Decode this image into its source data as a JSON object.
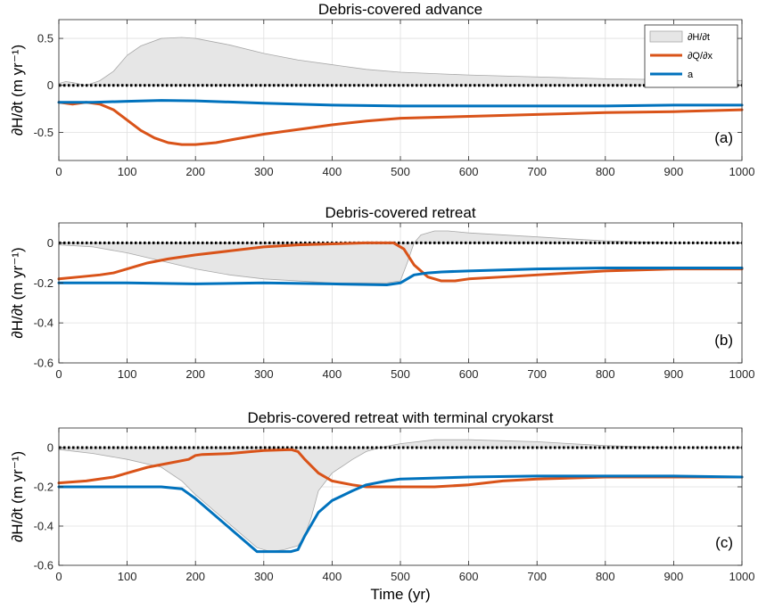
{
  "chart_data": [
    {
      "type": "line",
      "title": "Debris-covered advance",
      "panel_label": "(a)",
      "ylabel": "∂H/∂t (m yr⁻¹)",
      "xlabel": "",
      "xlim": [
        0,
        1000
      ],
      "ylim": [
        -0.8,
        0.7
      ],
      "xticks": [
        "0",
        "100",
        "200",
        "300",
        "400",
        "500",
        "600",
        "700",
        "800",
        "900",
        "1000"
      ],
      "yticks": [
        {
          "v": 0.5,
          "label": "0.5"
        },
        {
          "v": 0,
          "label": "0"
        },
        {
          "v": -0.5,
          "label": "-0.5"
        }
      ],
      "grid": true,
      "legend_position": "top-right",
      "legend": [
        "∂H/∂t",
        "∂Q/∂x",
        "a"
      ],
      "series": [
        {
          "name": "∂H/∂t",
          "kind": "area",
          "color": "#e6e6e6",
          "x": [
            0,
            10,
            20,
            40,
            60,
            80,
            100,
            120,
            150,
            180,
            200,
            250,
            300,
            350,
            400,
            450,
            500,
            600,
            700,
            800,
            900,
            1000
          ],
          "values": [
            0.02,
            0.04,
            0.03,
            0.0,
            0.05,
            0.15,
            0.32,
            0.42,
            0.5,
            0.51,
            0.5,
            0.43,
            0.34,
            0.27,
            0.22,
            0.17,
            0.14,
            0.11,
            0.09,
            0.07,
            0.06,
            0.05
          ]
        },
        {
          "name": "∂Q/∂x",
          "kind": "line",
          "color": "#d95319",
          "x": [
            0,
            20,
            40,
            60,
            80,
            100,
            120,
            140,
            160,
            180,
            200,
            230,
            260,
            300,
            350,
            400,
            450,
            500,
            600,
            700,
            800,
            900,
            1000
          ],
          "values": [
            -0.18,
            -0.2,
            -0.18,
            -0.2,
            -0.26,
            -0.37,
            -0.48,
            -0.56,
            -0.61,
            -0.63,
            -0.63,
            -0.61,
            -0.57,
            -0.52,
            -0.47,
            -0.42,
            -0.38,
            -0.35,
            -0.33,
            -0.31,
            -0.29,
            -0.28,
            -0.26
          ]
        },
        {
          "name": "a",
          "kind": "line",
          "color": "#0072bd",
          "x": [
            0,
            50,
            100,
            150,
            200,
            300,
            400,
            500,
            600,
            700,
            800,
            900,
            1000
          ],
          "values": [
            -0.18,
            -0.18,
            -0.17,
            -0.16,
            -0.165,
            -0.19,
            -0.21,
            -0.22,
            -0.22,
            -0.22,
            -0.22,
            -0.21,
            -0.21
          ]
        }
      ]
    },
    {
      "type": "line",
      "title": "Debris-covered retreat",
      "panel_label": "(b)",
      "ylabel": "∂H/∂t (m yr⁻¹)",
      "xlabel": "",
      "xlim": [
        0,
        1000
      ],
      "ylim": [
        -0.6,
        0.1
      ],
      "xticks": [
        "0",
        "100",
        "200",
        "300",
        "400",
        "500",
        "600",
        "700",
        "800",
        "900",
        "1000"
      ],
      "yticks": [
        {
          "v": 0,
          "label": "0"
        },
        {
          "v": -0.2,
          "label": "-0.2"
        },
        {
          "v": -0.4,
          "label": "-0.4"
        },
        {
          "v": -0.6,
          "label": "-0.6"
        }
      ],
      "grid": true,
      "series": [
        {
          "name": "∂H/∂t",
          "kind": "area",
          "color": "#e6e6e6",
          "x": [
            0,
            50,
            100,
            150,
            200,
            250,
            300,
            350,
            400,
            450,
            480,
            500,
            510,
            520,
            530,
            550,
            570,
            600,
            650,
            700,
            750,
            800,
            850,
            900,
            1000
          ],
          "values": [
            -0.01,
            -0.02,
            -0.05,
            -0.09,
            -0.13,
            -0.16,
            -0.18,
            -0.19,
            -0.2,
            -0.2,
            -0.2,
            -0.19,
            -0.1,
            0.0,
            0.04,
            0.06,
            0.06,
            0.05,
            0.04,
            0.03,
            0.02,
            0.01,
            0.005,
            0.0,
            0.0
          ]
        },
        {
          "name": "∂Q/∂x",
          "kind": "line",
          "color": "#d95319",
          "x": [
            0,
            30,
            60,
            80,
            100,
            130,
            160,
            200,
            250,
            300,
            350,
            400,
            450,
            490,
            505,
            520,
            540,
            560,
            580,
            600,
            650,
            700,
            750,
            800,
            850,
            900,
            1000
          ],
          "values": [
            -0.18,
            -0.17,
            -0.16,
            -0.15,
            -0.13,
            -0.1,
            -0.08,
            -0.06,
            -0.04,
            -0.02,
            -0.01,
            -0.005,
            0.0,
            0.0,
            -0.03,
            -0.11,
            -0.17,
            -0.19,
            -0.19,
            -0.18,
            -0.17,
            -0.16,
            -0.15,
            -0.14,
            -0.135,
            -0.13,
            -0.13
          ]
        },
        {
          "name": "a",
          "kind": "line",
          "color": "#0072bd",
          "x": [
            0,
            100,
            200,
            300,
            400,
            480,
            500,
            510,
            520,
            540,
            560,
            600,
            650,
            700,
            800,
            900,
            1000
          ],
          "values": [
            -0.2,
            -0.2,
            -0.205,
            -0.2,
            -0.205,
            -0.21,
            -0.2,
            -0.18,
            -0.16,
            -0.15,
            -0.145,
            -0.14,
            -0.135,
            -0.13,
            -0.125,
            -0.125,
            -0.125
          ]
        }
      ]
    },
    {
      "type": "line",
      "title": "Debris-covered retreat with terminal cryokarst",
      "panel_label": "(c)",
      "ylabel": "∂H/∂t (m yr⁻¹)",
      "xlabel": "Time (yr)",
      "xlim": [
        0,
        1000
      ],
      "ylim": [
        -0.6,
        0.1
      ],
      "xticks": [
        "0",
        "100",
        "200",
        "300",
        "400",
        "500",
        "600",
        "700",
        "800",
        "900",
        "1000"
      ],
      "yticks": [
        {
          "v": 0,
          "label": "0"
        },
        {
          "v": -0.2,
          "label": "-0.2"
        },
        {
          "v": -0.4,
          "label": "-0.4"
        },
        {
          "v": -0.6,
          "label": "-0.6"
        }
      ],
      "grid": true,
      "series": [
        {
          "name": "∂H/∂t",
          "kind": "area",
          "color": "#e6e6e6",
          "x": [
            0,
            50,
            100,
            150,
            180,
            200,
            230,
            260,
            290,
            310,
            330,
            350,
            360,
            370,
            380,
            400,
            430,
            450,
            470,
            500,
            550,
            600,
            650,
            700,
            750,
            800,
            900,
            1000
          ],
          "values": [
            -0.01,
            -0.03,
            -0.06,
            -0.1,
            -0.17,
            -0.24,
            -0.33,
            -0.42,
            -0.51,
            -0.53,
            -0.52,
            -0.5,
            -0.45,
            -0.35,
            -0.22,
            -0.13,
            -0.06,
            -0.02,
            0.0,
            0.02,
            0.04,
            0.04,
            0.035,
            0.03,
            0.02,
            0.01,
            0.0,
            0.0
          ]
        },
        {
          "name": "∂Q/∂x",
          "kind": "line",
          "color": "#d95319",
          "x": [
            0,
            40,
            80,
            100,
            130,
            160,
            190,
            200,
            210,
            250,
            300,
            340,
            350,
            360,
            380,
            400,
            430,
            450,
            480,
            500,
            550,
            600,
            650,
            700,
            800,
            900,
            1000
          ],
          "values": [
            -0.18,
            -0.17,
            -0.15,
            -0.13,
            -0.1,
            -0.08,
            -0.06,
            -0.04,
            -0.035,
            -0.03,
            -0.015,
            -0.01,
            -0.02,
            -0.06,
            -0.13,
            -0.17,
            -0.19,
            -0.2,
            -0.2,
            -0.2,
            -0.2,
            -0.19,
            -0.17,
            -0.16,
            -0.15,
            -0.15,
            -0.15
          ]
        },
        {
          "name": "a",
          "kind": "line",
          "color": "#0072bd",
          "x": [
            0,
            100,
            150,
            180,
            200,
            250,
            290,
            300,
            340,
            350,
            360,
            380,
            400,
            430,
            450,
            480,
            500,
            550,
            600,
            700,
            800,
            900,
            1000
          ],
          "values": [
            -0.2,
            -0.2,
            -0.2,
            -0.21,
            -0.26,
            -0.41,
            -0.53,
            -0.53,
            -0.53,
            -0.52,
            -0.45,
            -0.33,
            -0.27,
            -0.22,
            -0.19,
            -0.17,
            -0.16,
            -0.155,
            -0.15,
            -0.145,
            -0.145,
            -0.145,
            -0.15
          ]
        }
      ]
    }
  ]
}
